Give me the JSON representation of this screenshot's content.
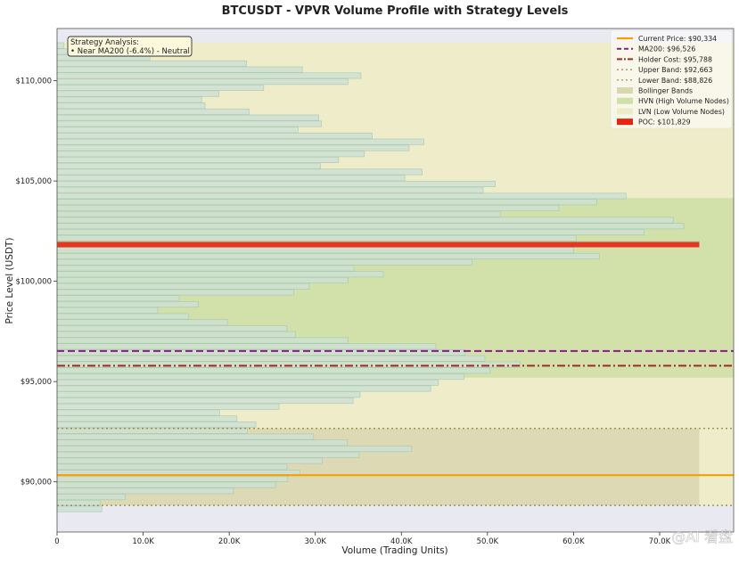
{
  "chart_data": {
    "type": "bar",
    "orientation": "horizontal",
    "title": "BTCUSDT - VPVR Volume Profile with Strategy Levels",
    "xlabel": "Volume (Trading Units)",
    "ylabel": "Price Level (USDT)",
    "xlim": [
      0,
      78600
    ],
    "ylim": [
      87500,
      112600
    ],
    "x_ticks": [
      {
        "value": 0,
        "label": "0"
      },
      {
        "value": 10000,
        "label": "10.0K"
      },
      {
        "value": 20000,
        "label": "20.0K"
      },
      {
        "value": 30000,
        "label": "30.0K"
      },
      {
        "value": 40000,
        "label": "40.0K"
      },
      {
        "value": 50000,
        "label": "50.0K"
      },
      {
        "value": 60000,
        "label": "60.0K"
      },
      {
        "value": 70000,
        "label": "70.0K"
      }
    ],
    "y_ticks": [
      {
        "value": 90000,
        "label": "$90,000"
      },
      {
        "value": 95000,
        "label": "$95,000"
      },
      {
        "value": 100000,
        "label": "$100,000"
      },
      {
        "value": 105000,
        "label": "$105,000"
      },
      {
        "value": 110000,
        "label": "$110,000"
      }
    ],
    "bin_size": 280,
    "bins": [
      {
        "price": 111750,
        "volume": 800
      },
      {
        "price": 111450,
        "volume": 2500
      },
      {
        "price": 111150,
        "volume": 10800
      },
      {
        "price": 110850,
        "volume": 22000
      },
      {
        "price": 110550,
        "volume": 28500
      },
      {
        "price": 110250,
        "volume": 35300
      },
      {
        "price": 109950,
        "volume": 33800
      },
      {
        "price": 109650,
        "volume": 24000
      },
      {
        "price": 109350,
        "volume": 18800
      },
      {
        "price": 109050,
        "volume": 16800
      },
      {
        "price": 108750,
        "volume": 17200
      },
      {
        "price": 108450,
        "volume": 22300
      },
      {
        "price": 108150,
        "volume": 30400
      },
      {
        "price": 107850,
        "volume": 30700
      },
      {
        "price": 107550,
        "volume": 28000
      },
      {
        "price": 107250,
        "volume": 36600
      },
      {
        "price": 106950,
        "volume": 42600
      },
      {
        "price": 106650,
        "volume": 40900
      },
      {
        "price": 106350,
        "volume": 35700
      },
      {
        "price": 106050,
        "volume": 32700
      },
      {
        "price": 105750,
        "volume": 30600
      },
      {
        "price": 105450,
        "volume": 42400
      },
      {
        "price": 105150,
        "volume": 40400
      },
      {
        "price": 104850,
        "volume": 50900
      },
      {
        "price": 104550,
        "volume": 49500
      },
      {
        "price": 104250,
        "volume": 66100
      },
      {
        "price": 103950,
        "volume": 62700
      },
      {
        "price": 103650,
        "volume": 58300
      },
      {
        "price": 103350,
        "volume": 51500
      },
      {
        "price": 103050,
        "volume": 71600
      },
      {
        "price": 102750,
        "volume": 72800
      },
      {
        "price": 102450,
        "volume": 68200
      },
      {
        "price": 102150,
        "volume": 60300
      },
      {
        "price": 101850,
        "volume": 74600
      },
      {
        "price": 101550,
        "volume": 60000
      },
      {
        "price": 101250,
        "volume": 63000
      },
      {
        "price": 100950,
        "volume": 48200
      },
      {
        "price": 100650,
        "volume": 34500
      },
      {
        "price": 100350,
        "volume": 37900
      },
      {
        "price": 100050,
        "volume": 33800
      },
      {
        "price": 99750,
        "volume": 29300
      },
      {
        "price": 99450,
        "volume": 27500
      },
      {
        "price": 99150,
        "volume": 14200
      },
      {
        "price": 98850,
        "volume": 16400
      },
      {
        "price": 98550,
        "volume": 11700
      },
      {
        "price": 98250,
        "volume": 15300
      },
      {
        "price": 97950,
        "volume": 19800
      },
      {
        "price": 97650,
        "volume": 26700
      },
      {
        "price": 97350,
        "volume": 27700
      },
      {
        "price": 97050,
        "volume": 33800
      },
      {
        "price": 96750,
        "volume": 44000
      },
      {
        "price": 96450,
        "volume": 47400
      },
      {
        "price": 96150,
        "volume": 49700
      },
      {
        "price": 95850,
        "volume": 53800
      },
      {
        "price": 95550,
        "volume": 50300
      },
      {
        "price": 95250,
        "volume": 47300
      },
      {
        "price": 94950,
        "volume": 44300
      },
      {
        "price": 94650,
        "volume": 43400
      },
      {
        "price": 94350,
        "volume": 35200
      },
      {
        "price": 94050,
        "volume": 34400
      },
      {
        "price": 93750,
        "volume": 25800
      },
      {
        "price": 93450,
        "volume": 18900
      },
      {
        "price": 93150,
        "volume": 20900
      },
      {
        "price": 92850,
        "volume": 23100
      },
      {
        "price": 92550,
        "volume": 22100
      },
      {
        "price": 92250,
        "volume": 29800
      },
      {
        "price": 91950,
        "volume": 33700
      },
      {
        "price": 91650,
        "volume": 41200
      },
      {
        "price": 91350,
        "volume": 35100
      },
      {
        "price": 91050,
        "volume": 30800
      },
      {
        "price": 90750,
        "volume": 26700
      },
      {
        "price": 90450,
        "volume": 28200
      },
      {
        "price": 90150,
        "volume": 26800
      },
      {
        "price": 89850,
        "volume": 25400
      },
      {
        "price": 89550,
        "volume": 20500
      },
      {
        "price": 89250,
        "volume": 7900
      },
      {
        "price": 88950,
        "volume": 5000
      },
      {
        "price": 88650,
        "volume": 5200
      }
    ],
    "levels": [
      {
        "name": "Current Price: $90,334",
        "price": 90334,
        "color": "#f5a000",
        "style": "solid",
        "width": 2.2
      },
      {
        "name": "MA200: $96,526",
        "price": 96526,
        "color": "#8a1a8a",
        "style": "dashed",
        "width": 2.0
      },
      {
        "name": "Holder Cost: $95,788",
        "price": 95788,
        "color": "#a02a28",
        "style": "dashdot",
        "width": 2.0
      },
      {
        "name": "Upper Band: $92,663",
        "price": 92663,
        "color": "#8d8a3c",
        "style": "dotted",
        "width": 1.2
      },
      {
        "name": "Lower Band: $88,826",
        "price": 88826,
        "color": "#8d8a3c",
        "style": "dotted",
        "width": 1.2
      }
    ],
    "bands": [
      {
        "name": "Bollinger Bands",
        "from": 88826,
        "to": 92663,
        "color": "#d9d6b2"
      },
      {
        "name": "HVN (High Volume Nodes)",
        "from": 95200,
        "to": 104150,
        "color": "#cfe0a8"
      },
      {
        "name": "LVN (Low Volume Nodes)",
        "from": 88826,
        "to": 111900,
        "color": "#eeecc6"
      }
    ],
    "poc": {
      "name": "POC: $101,829",
      "price": 101829,
      "volume": 74600,
      "color": "#e82410"
    },
    "legend_position": "top-right",
    "grid": false,
    "annotation": {
      "title": "Strategy Analysis:",
      "line": "• Near MA200 (-6.4%) - Neutral"
    }
  },
  "watermark_text": "@AI 看盘",
  "colors": {
    "plot_bg": "#e9e9f1",
    "bar_fill": "#cfe1d4",
    "bar_stroke": "#a8ccb2",
    "annotation_bg": "#fbf8dc"
  }
}
